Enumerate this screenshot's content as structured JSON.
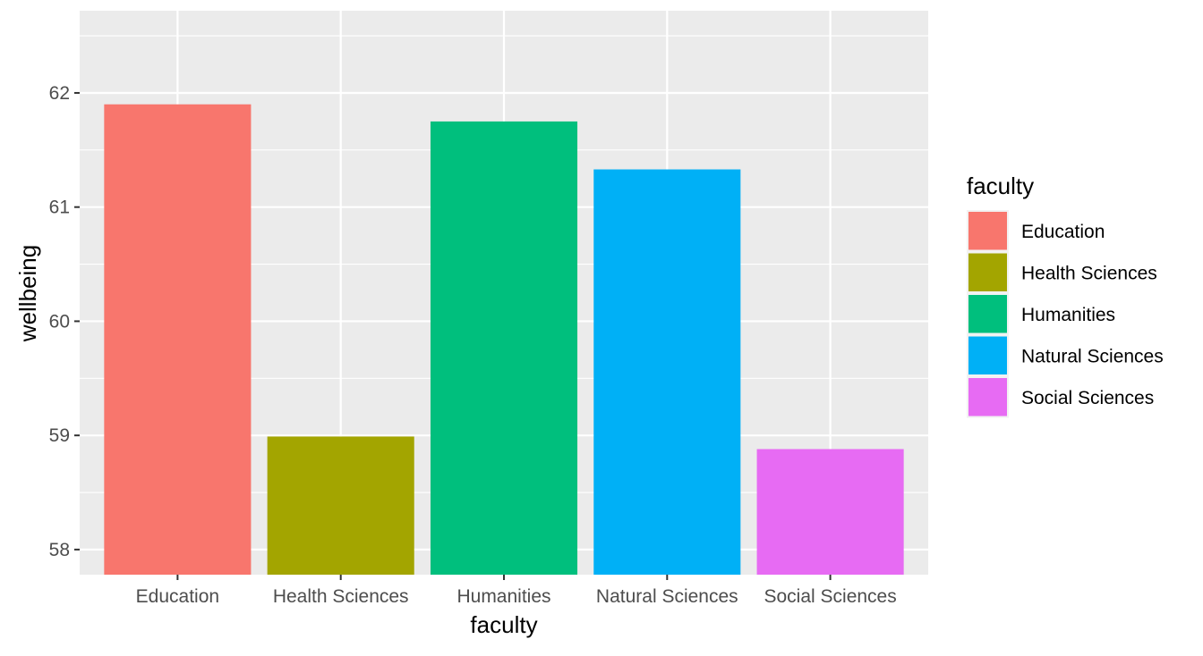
{
  "chart_data": {
    "type": "bar",
    "categories": [
      "Education",
      "Health Sciences",
      "Humanities",
      "Natural Sciences",
      "Social Sciences"
    ],
    "values": [
      61.9,
      58.99,
      61.75,
      61.33,
      58.88
    ],
    "xlabel": "faculty",
    "ylabel": "wellbeing",
    "ylim": [
      57.78,
      62.72
    ],
    "yticks": [
      58,
      59,
      60,
      61,
      62
    ],
    "ytick_labels": [
      "58",
      "59",
      "60",
      "61",
      "62"
    ],
    "grid": true,
    "legend": {
      "title": "faculty",
      "placement": "right",
      "entries": [
        "Education",
        "Health Sciences",
        "Humanities",
        "Natural Sciences",
        "Social Sciences"
      ]
    },
    "colors": [
      "#F8766D",
      "#A3A500",
      "#00BF7D",
      "#00B0F6",
      "#E76BF3"
    ],
    "panel_background": "#EBEBEB",
    "grid_color": "#FFFFFF"
  }
}
